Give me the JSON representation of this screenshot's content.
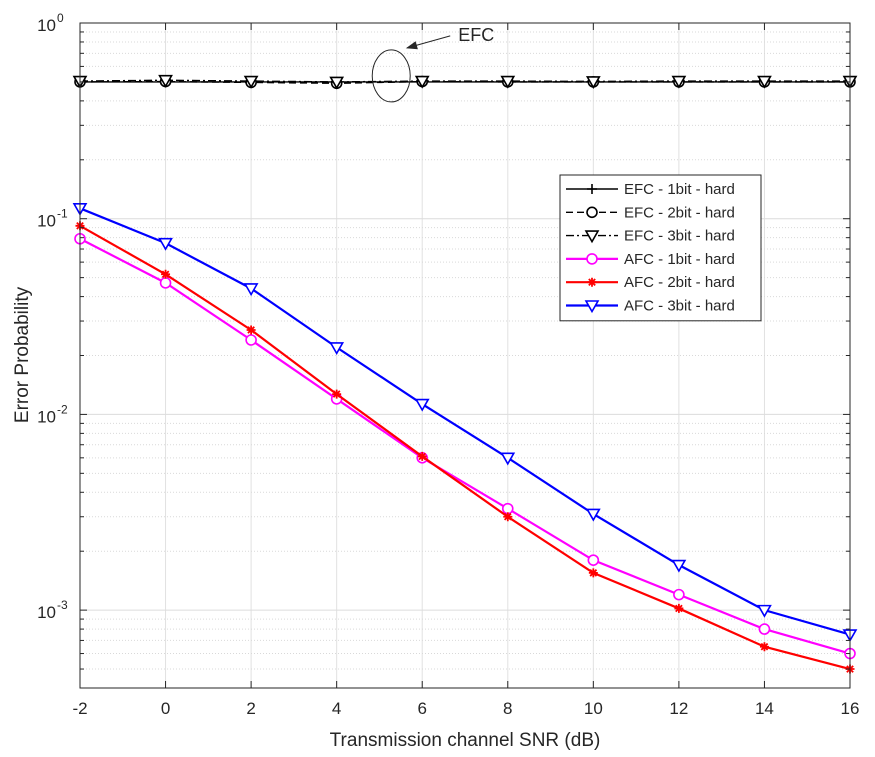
{
  "chart_data": {
    "type": "line",
    "title": "",
    "xlabel": "Transmission channel SNR (dB)",
    "ylabel": "Error Probability",
    "xlim": [
      -2,
      16
    ],
    "ylim": [
      0.0004,
      1
    ],
    "yscale": "log",
    "grid": true,
    "legend_position": "top-right",
    "x": [
      -2,
      0,
      2,
      4,
      6,
      8,
      10,
      12,
      14,
      16
    ],
    "x_tick_labels": [
      "-2",
      "0",
      "2",
      "4",
      "6",
      "8",
      "10",
      "12",
      "14",
      "16"
    ],
    "y_ticks": [
      {
        "base": "10",
        "exp": "0"
      },
      {
        "base": "10",
        "exp": "-1"
      },
      {
        "base": "10",
        "exp": "-2"
      },
      {
        "base": "10",
        "exp": "-3"
      }
    ],
    "series": [
      {
        "name": "EFC - 1bit - hard",
        "color": "#000000",
        "line": "solid",
        "marker": "plus",
        "values": [
          0.5,
          0.5,
          0.5,
          0.5,
          0.5,
          0.5,
          0.5,
          0.5,
          0.5,
          0.5
        ]
      },
      {
        "name": "EFC - 2bit - hard",
        "color": "#000000",
        "line": "dashed",
        "marker": "circle",
        "values": [
          0.5,
          0.502,
          0.497,
          0.492,
          0.502,
          0.5,
          0.5,
          0.5,
          0.5,
          0.5
        ]
      },
      {
        "name": "EFC - 3bit - hard",
        "color": "#000000",
        "line": "dashdot",
        "marker": "triangle-down",
        "values": [
          0.505,
          0.51,
          0.505,
          0.5,
          0.505,
          0.505,
          0.503,
          0.505,
          0.505,
          0.505
        ]
      },
      {
        "name": "AFC - 1bit - hard",
        "color": "#ff00ff",
        "line": "solid",
        "marker": "circle",
        "values": [
          0.079,
          0.047,
          0.024,
          0.012,
          0.006,
          0.0033,
          0.0018,
          0.0012,
          0.0008,
          0.0006
        ]
      },
      {
        "name": "AFC - 2bit - hard",
        "color": "#ff0000",
        "line": "solid",
        "marker": "asterisk",
        "values": [
          0.092,
          0.052,
          0.027,
          0.0127,
          0.0061,
          0.003,
          0.00155,
          0.00102,
          0.00065,
          0.0005
        ]
      },
      {
        "name": "AFC - 3bit - hard",
        "color": "#0000ff",
        "line": "solid",
        "marker": "triangle-down",
        "values": [
          0.113,
          0.075,
          0.044,
          0.022,
          0.0113,
          0.006,
          0.0031,
          0.0017,
          0.001,
          0.00075
        ]
      }
    ],
    "annotations": [
      {
        "text": "EFC",
        "points_to_x": 6,
        "points_to_y": 0.5
      }
    ]
  }
}
